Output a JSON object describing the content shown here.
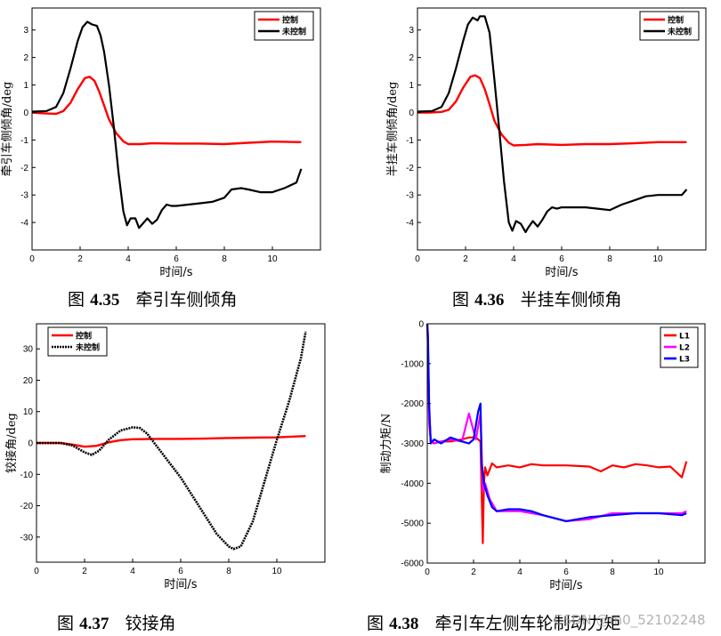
{
  "chart_data": [
    {
      "type": "line",
      "xlabel": "时间/s",
      "ylabel": "牵引车侧倾角/deg",
      "xlim": [
        0,
        12
      ],
      "ylim": [
        -5,
        3.8
      ],
      "xticks": [
        0,
        2,
        4,
        6,
        8,
        10
      ],
      "yticks": [
        -4,
        -3,
        -2,
        -1,
        0,
        1,
        2,
        3
      ],
      "xtick_labels": [
        "0",
        "2",
        "4",
        "6",
        "8",
        "10"
      ],
      "ytick_labels": [
        "-4",
        "-3",
        "-2",
        "-1",
        "0",
        "1",
        "2",
        "3"
      ],
      "legend_position": "top-right",
      "series": [
        {
          "name": "控制",
          "color": "#ff0000",
          "x": [
            0,
            0.5,
            1.0,
            1.3,
            1.6,
            1.9,
            2.2,
            2.4,
            2.6,
            2.8,
            3.0,
            3.2,
            3.5,
            3.8,
            4.0,
            4.5,
            5,
            6,
            7,
            8,
            9,
            10,
            11.2
          ],
          "y": [
            0,
            -0.03,
            -0.05,
            0.05,
            0.35,
            0.85,
            1.25,
            1.3,
            1.15,
            0.75,
            0.25,
            -0.25,
            -0.75,
            -1.05,
            -1.15,
            -1.15,
            -1.12,
            -1.13,
            -1.13,
            -1.15,
            -1.1,
            -1.06,
            -1.08
          ]
        },
        {
          "name": "未控制",
          "color": "#000000",
          "x": [
            0,
            0.6,
            1.0,
            1.3,
            1.6,
            1.9,
            2.1,
            2.3,
            2.5,
            2.7,
            2.85,
            3.0,
            3.2,
            3.4,
            3.6,
            3.8,
            3.95,
            4.1,
            4.3,
            4.45,
            4.6,
            4.8,
            5.0,
            5.2,
            5.4,
            5.6,
            5.8,
            6.0,
            6.5,
            7.0,
            7.5,
            8.0,
            8.3,
            8.7,
            9.0,
            9.5,
            10.0,
            10.5,
            11.0,
            11.2
          ],
          "y": [
            0.03,
            0.05,
            0.2,
            0.7,
            1.6,
            2.6,
            3.1,
            3.3,
            3.2,
            3.15,
            2.8,
            2.2,
            1.0,
            -0.5,
            -2.2,
            -3.6,
            -4.1,
            -3.85,
            -3.85,
            -4.2,
            -4.05,
            -3.85,
            -4.05,
            -3.9,
            -3.55,
            -3.35,
            -3.4,
            -3.4,
            -3.35,
            -3.3,
            -3.25,
            -3.1,
            -2.8,
            -2.75,
            -2.8,
            -2.9,
            -2.9,
            -2.75,
            -2.55,
            -2.05
          ]
        }
      ]
    },
    {
      "type": "line",
      "xlabel": "时间/s",
      "ylabel": "半挂车侧倾角/deg",
      "xlim": [
        0,
        12
      ],
      "ylim": [
        -5,
        3.8
      ],
      "xticks": [
        0,
        2,
        4,
        6,
        8,
        10
      ],
      "yticks": [
        -4,
        -3,
        -2,
        -1,
        0,
        1,
        2,
        3
      ],
      "xtick_labels": [
        "0",
        "2",
        "4",
        "6",
        "8",
        "10"
      ],
      "ytick_labels": [
        "-4",
        "-3",
        "-2",
        "-1",
        "0",
        "1",
        "2",
        "3"
      ],
      "legend_position": "top-right",
      "series": [
        {
          "name": "控制",
          "color": "#ff0000",
          "x": [
            0,
            0.5,
            1.0,
            1.3,
            1.6,
            1.9,
            2.2,
            2.4,
            2.6,
            2.8,
            3.0,
            3.2,
            3.5,
            3.8,
            4.0,
            4.5,
            5,
            6,
            7,
            8,
            9,
            10,
            11.2
          ],
          "y": [
            0,
            0.0,
            0.02,
            0.1,
            0.4,
            0.9,
            1.3,
            1.35,
            1.25,
            0.85,
            0.3,
            -0.3,
            -0.8,
            -1.1,
            -1.2,
            -1.18,
            -1.15,
            -1.18,
            -1.15,
            -1.15,
            -1.12,
            -1.08,
            -1.08
          ]
        },
        {
          "name": "未控制",
          "color": "#000000",
          "x": [
            0,
            0.6,
            1.0,
            1.3,
            1.6,
            1.9,
            2.1,
            2.3,
            2.5,
            2.6,
            2.8,
            3.0,
            3.2,
            3.4,
            3.6,
            3.8,
            3.95,
            4.1,
            4.3,
            4.5,
            4.6,
            4.8,
            5.0,
            5.2,
            5.4,
            5.6,
            5.8,
            6.0,
            6.5,
            7.0,
            7.5,
            8.0,
            8.5,
            9.0,
            9.5,
            10.0,
            10.5,
            11.0,
            11.2
          ],
          "y": [
            0.03,
            0.05,
            0.2,
            0.7,
            1.6,
            2.6,
            3.2,
            3.45,
            3.35,
            3.5,
            3.5,
            2.9,
            1.2,
            -0.6,
            -2.5,
            -4.0,
            -4.3,
            -3.95,
            -4.05,
            -4.35,
            -4.2,
            -3.95,
            -4.15,
            -3.9,
            -3.6,
            -3.45,
            -3.5,
            -3.45,
            -3.45,
            -3.45,
            -3.5,
            -3.55,
            -3.35,
            -3.2,
            -3.05,
            -3.0,
            -3.0,
            -3.0,
            -2.8
          ]
        }
      ]
    },
    {
      "type": "line",
      "xlabel": "时间/s",
      "ylabel": "铰接角/deg",
      "xlim": [
        0,
        12
      ],
      "ylim": [
        -38,
        38
      ],
      "xticks": [
        0,
        2,
        4,
        6,
        8,
        10
      ],
      "yticks": [
        -30,
        -20,
        -10,
        0,
        10,
        20,
        30
      ],
      "xtick_labels": [
        "0",
        "2",
        "4",
        "6",
        "8",
        "10"
      ],
      "ytick_labels": [
        "-30",
        "-20",
        "-10",
        "0",
        "10",
        "20",
        "30"
      ],
      "legend_position": "top-left",
      "series": [
        {
          "name": "控制",
          "color": "#ff0000",
          "x": [
            0,
            1.0,
            1.5,
            2.0,
            2.5,
            3.0,
            3.5,
            4.0,
            5,
            6,
            7,
            8,
            9,
            10,
            11.2
          ],
          "y": [
            0,
            0,
            -0.5,
            -1.2,
            -0.9,
            0.2,
            0.9,
            1.2,
            1.3,
            1.3,
            1.4,
            1.6,
            1.7,
            1.8,
            2.2
          ]
        },
        {
          "name": "未控制",
          "color": "#000000",
          "x": [
            0,
            1.0,
            1.5,
            2.0,
            2.3,
            2.6,
            3.0,
            3.5,
            4.0,
            4.3,
            4.6,
            5.0,
            5.5,
            6.0,
            6.5,
            7.0,
            7.5,
            8.0,
            8.2,
            8.5,
            9.0,
            9.5,
            10.0,
            10.5,
            11.0,
            11.2
          ],
          "y": [
            0,
            0,
            -0.8,
            -3.0,
            -3.8,
            -2.5,
            1.0,
            4.0,
            5.0,
            4.8,
            3.0,
            -1.0,
            -6.0,
            -11.0,
            -17.0,
            -23.0,
            -29.0,
            -33.0,
            -33.8,
            -33.0,
            -25.0,
            -12.0,
            1.0,
            13.0,
            27.0,
            35.5
          ]
        }
      ]
    },
    {
      "type": "line",
      "xlabel": "时间/s",
      "ylabel": "制动力矩/N",
      "xlim": [
        0,
        12
      ],
      "ylim": [
        -6000,
        0
      ],
      "xticks": [
        0,
        2,
        4,
        6,
        8,
        10
      ],
      "yticks": [
        0,
        -1000,
        -2000,
        -3000,
        -4000,
        -5000,
        -6000
      ],
      "xtick_labels": [
        "0",
        "2",
        "4",
        "6",
        "8",
        "10"
      ],
      "ytick_labels": [
        "0",
        "-1000",
        "-2000",
        "-3000",
        "-4000",
        "-5000",
        "-6000"
      ],
      "legend_position": "top-right",
      "series": [
        {
          "name": "L1",
          "color": "#ff0000",
          "x": [
            0,
            0.03,
            0.08,
            0.15,
            0.3,
            0.6,
            1.0,
            1.5,
            1.8,
            2.1,
            2.3,
            2.4,
            2.45,
            2.5,
            2.6,
            2.8,
            3.0,
            3.5,
            4.0,
            4.5,
            5,
            6,
            7,
            7.5,
            8,
            8.5,
            9,
            9.5,
            10,
            10.5,
            11,
            11.2
          ],
          "y": [
            0,
            -600,
            -2200,
            -2950,
            -3000,
            -2950,
            -2950,
            -2900,
            -2850,
            -2850,
            -2950,
            -5500,
            -4000,
            -3600,
            -3800,
            -3500,
            -3600,
            -3550,
            -3600,
            -3520,
            -3550,
            -3550,
            -3580,
            -3700,
            -3550,
            -3600,
            -3520,
            -3550,
            -3600,
            -3580,
            -3850,
            -3450
          ]
        },
        {
          "name": "L2",
          "color": "#ff00ff",
          "x": [
            0,
            0.03,
            0.08,
            0.15,
            0.3,
            0.6,
            1.0,
            1.5,
            1.8,
            2.1,
            2.3,
            2.4,
            2.5,
            2.7,
            3.0,
            3.5,
            4,
            5,
            6,
            7,
            8,
            9,
            10,
            11,
            11.2
          ],
          "y": [
            0,
            -500,
            -2500,
            -2900,
            -3000,
            -2950,
            -2900,
            -2950,
            -2250,
            -2900,
            -2250,
            -4200,
            -4000,
            -4400,
            -4700,
            -4700,
            -4700,
            -4800,
            -4950,
            -4900,
            -4750,
            -4750,
            -4750,
            -4750,
            -4700
          ]
        },
        {
          "name": "L3",
          "color": "#0000ff",
          "x": [
            0,
            0.03,
            0.08,
            0.15,
            0.3,
            0.6,
            1.0,
            1.5,
            1.8,
            2.0,
            2.2,
            2.3,
            2.35,
            2.45,
            2.6,
            2.8,
            3.0,
            3.5,
            4,
            4.5,
            5,
            6,
            7,
            8,
            9,
            10,
            11,
            11.2
          ],
          "y": [
            0,
            -300,
            -2000,
            -3000,
            -2900,
            -3000,
            -2850,
            -2950,
            -3000,
            -2900,
            -2200,
            -2000,
            -3500,
            -4000,
            -4300,
            -4600,
            -4700,
            -4650,
            -4650,
            -4700,
            -4800,
            -4950,
            -4850,
            -4800,
            -4750,
            -4750,
            -4800,
            -4750
          ]
        }
      ]
    }
  ],
  "captions": {
    "c1": {
      "prefix": "图",
      "num": "4.35",
      "text": "牵引车侧倾角"
    },
    "c2": {
      "prefix": "图",
      "num": "4.36",
      "text": "半挂车侧倾角"
    },
    "c3": {
      "prefix": "图",
      "num": "4.37",
      "text": "铰接角"
    },
    "c4": {
      "prefix": "图",
      "num": "4.38",
      "text": "牵引车左侧车轮制动力矩"
    }
  },
  "watermark": "CSDN @m0_52102248"
}
